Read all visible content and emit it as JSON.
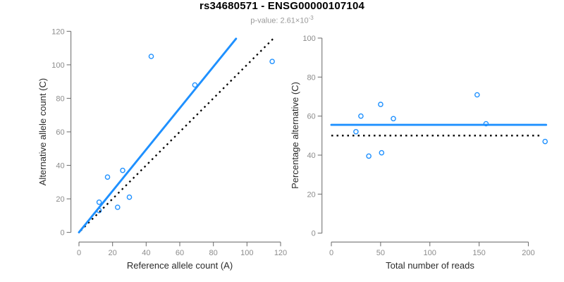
{
  "header": {
    "title": "rs34680571 - ENSG00000107104",
    "subtitle_text": "p-value: 2.61×10",
    "subtitle_exponent": "-3"
  },
  "colors": {
    "accent_blue": "#1E90FF",
    "dotted_black": "#000000",
    "axis_gray": "#757575",
    "tick_label_gray": "#8c8c8c",
    "subtitle_gray": "#9a9a9a"
  },
  "chart_data": [
    {
      "type": "scatter",
      "panel": "left",
      "xlabel": "Reference allele count (A)",
      "ylabel": "Alternative allele count (C)",
      "xlim": [
        0,
        120
      ],
      "ylim": [
        0,
        120
      ],
      "xticks": [
        0,
        20,
        40,
        60,
        80,
        100,
        120
      ],
      "yticks": [
        0,
        20,
        40,
        60,
        80,
        100,
        120
      ],
      "grid": false,
      "legend": "none",
      "marker": "open-circle",
      "points": [
        [
          12,
          13
        ],
        [
          12,
          18
        ],
        [
          17,
          33
        ],
        [
          23,
          15
        ],
        [
          26,
          37
        ],
        [
          30,
          21
        ],
        [
          43,
          105
        ],
        [
          69,
          88
        ],
        [
          115,
          102
        ]
      ],
      "lines": [
        {
          "name": "fit-line",
          "style": "solid",
          "color": "blue",
          "x1": 0,
          "y1": 0,
          "x2": 93.5,
          "y2": 115.6
        },
        {
          "name": "identity-line",
          "style": "dotted",
          "color": "black",
          "x1": 1,
          "y1": 1,
          "x2": 116,
          "y2": 116
        }
      ]
    },
    {
      "type": "scatter",
      "panel": "right",
      "xlabel": "Total number of reads",
      "ylabel": "Percentage alternative (C)",
      "xlim": [
        0,
        218
      ],
      "ylim": [
        0,
        100
      ],
      "xticks": [
        0,
        50,
        100,
        150,
        200
      ],
      "yticks": [
        0,
        20,
        40,
        60,
        80,
        100
      ],
      "grid": false,
      "legend": "none",
      "marker": "open-circle",
      "points": [
        [
          25,
          52.0
        ],
        [
          30,
          60.0
        ],
        [
          38,
          39.5
        ],
        [
          50,
          66.0
        ],
        [
          51,
          41.2
        ],
        [
          63,
          58.7
        ],
        [
          148,
          70.9
        ],
        [
          157,
          56.1
        ],
        [
          217,
          47.0
        ]
      ],
      "lines": [
        {
          "name": "mean-percentage-line",
          "style": "solid",
          "color": "blue",
          "x1": 0,
          "y1": 55.5,
          "x2": 218,
          "y2": 55.5
        },
        {
          "name": "expected-50-percent-line",
          "style": "dotted",
          "color": "black",
          "x1": 0,
          "y1": 50,
          "x2": 212,
          "y2": 50
        }
      ]
    }
  ]
}
